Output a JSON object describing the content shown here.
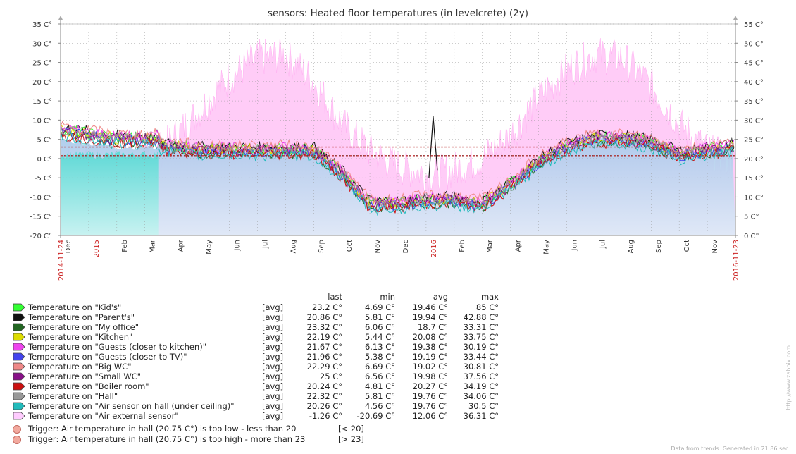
{
  "chart_data": {
    "type": "area",
    "title": "sensors: Heated floor temperatures (in levelcrete) (2y)",
    "y_left": {
      "min": -20,
      "max": 35,
      "step": 5,
      "unit": "C°",
      "ticks": [
        "35 C°",
        "30 C°",
        "25 C°",
        "20 C°",
        "15 C°",
        "10 C°",
        "5 C°",
        "0 C°",
        "-5 C°",
        "-10 C°",
        "-15 C°",
        "-20 C°"
      ]
    },
    "y_right": {
      "min": 0,
      "max": 55,
      "step": 5,
      "unit": "C°",
      "ticks": [
        "55 C°",
        "50 C°",
        "45 C°",
        "40 C°",
        "35 C°",
        "30 C°",
        "25 C°",
        "20 C°",
        "15 C°",
        "10 C°",
        "5 C°",
        "0 C°"
      ]
    },
    "x_start_label": "2014-11-24",
    "x_end_label": "2016-11-23",
    "x_labels": [
      "Dec",
      "2015",
      "Feb",
      "Mar",
      "Apr",
      "May",
      "Jun",
      "Jul",
      "Aug",
      "Sep",
      "Oct",
      "Nov",
      "Dec",
      "2016",
      "Feb",
      "Mar",
      "Apr",
      "May",
      "Jun",
      "Jul",
      "Aug",
      "Sep",
      "Oct",
      "Nov"
    ],
    "x_label_red": [
      "2015",
      "2016"
    ],
    "x_label_month_index": [
      0.25,
      1.25,
      2.25,
      3.25,
      4.25,
      5.25,
      6.25,
      7.25,
      8.25,
      9.25,
      10.25,
      11.25,
      12.25,
      13.25,
      14.25,
      15.25,
      16.25,
      17.25,
      18.25,
      19.25,
      20.25,
      21.25,
      22.25,
      23.25
    ],
    "trigger_lines": [
      20.75,
      23
    ],
    "outdoor_profile_months": [
      0,
      1,
      2,
      3,
      4,
      5,
      6,
      7,
      8,
      9,
      10,
      11,
      12,
      13,
      14,
      15,
      16,
      17,
      18,
      19,
      20,
      21,
      22,
      23,
      24
    ],
    "outdoor_profile_values": [
      -1,
      -2,
      -3,
      -1,
      5,
      13,
      21,
      26,
      27,
      20,
      9,
      2,
      -2,
      -4,
      -3,
      0,
      6,
      16,
      23,
      27,
      26,
      19,
      9,
      2,
      -1
    ],
    "indoor_profile_values": [
      5,
      4,
      3,
      3,
      3,
      2,
      2,
      2,
      2,
      2,
      -4,
      -12,
      -12,
      -11,
      -11,
      -12,
      -7,
      -1,
      3,
      5,
      5,
      4,
      1,
      2,
      3
    ],
    "legend": {
      "headers": {
        "last": "last",
        "min": "min",
        "avg": "avg",
        "max": "max"
      },
      "items": [
        {
          "name": "Temperature on \"Kid's\"",
          "fn": "[avg]",
          "last": "23.2 C°",
          "min": "4.69 C°",
          "avg": "19.46 C°",
          "max": "85 C°",
          "color": "#33ff33"
        },
        {
          "name": "Temperature on \"Parent's\"",
          "fn": "[avg]",
          "last": "20.86 C°",
          "min": "5.81 C°",
          "avg": "19.94 C°",
          "max": "42.88 C°",
          "color": "#111111"
        },
        {
          "name": "Temperature on \"My office\"",
          "fn": "[avg]",
          "last": "23.32 C°",
          "min": "6.06 C°",
          "avg": "18.7 C°",
          "max": "33.31 C°",
          "color": "#226622"
        },
        {
          "name": "Temperature on \"Kitchen\"",
          "fn": "[avg]",
          "last": "22.19 C°",
          "min": "5.44 C°",
          "avg": "20.08 C°",
          "max": "33.75 C°",
          "color": "#dddd00"
        },
        {
          "name": "Temperature on \"Guests (closer to kitchen)\"",
          "fn": "[avg]",
          "last": "21.67 C°",
          "min": "6.13 C°",
          "avg": "19.38 C°",
          "max": "30.19 C°",
          "color": "#ee44ee"
        },
        {
          "name": "Temperature on \"Guests (closer to TV)\"",
          "fn": "[avg]",
          "last": "21.96 C°",
          "min": "5.38 C°",
          "avg": "19.19 C°",
          "max": "33.44 C°",
          "color": "#4444ee"
        },
        {
          "name": "Temperature on \"Big WC\"",
          "fn": "[avg]",
          "last": "22.29 C°",
          "min": "6.69 C°",
          "avg": "19.02 C°",
          "max": "30.81 C°",
          "color": "#ee8888"
        },
        {
          "name": "Temperature on \"Small WC\"",
          "fn": "[avg]",
          "last": "25 C°",
          "min": "6.56 C°",
          "avg": "19.98 C°",
          "max": "37.56 C°",
          "color": "#881188"
        },
        {
          "name": "Temperature on \"Boiler room\"",
          "fn": "[avg]",
          "last": "20.24 C°",
          "min": "4.81 C°",
          "avg": "20.27 C°",
          "max": "34.19 C°",
          "color": "#cc1111"
        },
        {
          "name": "Temperature on \"Hall\"",
          "fn": "[avg]",
          "last": "22.32 C°",
          "min": "5.81 C°",
          "avg": "19.76 C°",
          "max": "34.06 C°",
          "color": "#999999"
        },
        {
          "name": "Temperature on \"Air sensor on hall (under ceiling)\"",
          "fn": "[avg]",
          "last": "20.26 C°",
          "min": "4.56 C°",
          "avg": "19.76 C°",
          "max": "30.5 C°",
          "color": "#22bbbb"
        },
        {
          "name": "Temperature on \"Air external sensor\"",
          "fn": "[avg]",
          "last": "-1.26 C°",
          "min": "-20.69 C°",
          "avg": "12.06 C°",
          "max": "36.31 C°",
          "color": "#ffccff"
        }
      ]
    },
    "triggers": [
      {
        "name": "Trigger: Air temperature in hall (20.75 C°) is too low - less than 20",
        "cond": "[< 20]"
      },
      {
        "name": "Trigger: Air temperature in hall (20.75 C°) is too high - more than 23",
        "cond": "[> 23]"
      }
    ]
  },
  "footer": "Data from trends. Generated in 21.86 sec.",
  "side_text": "http://www.zabbix.com"
}
